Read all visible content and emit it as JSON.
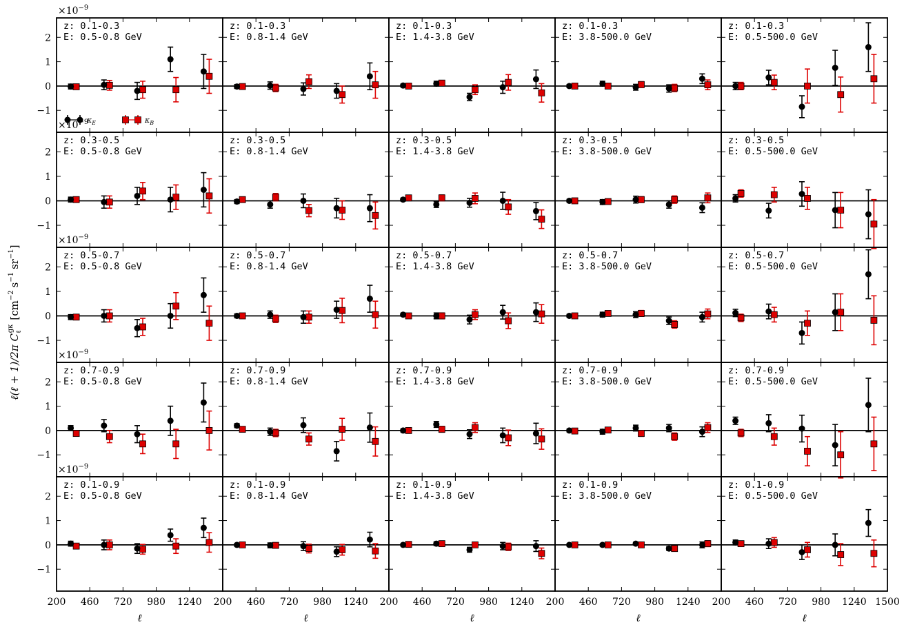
{
  "chart_data": {
    "type": "scatter",
    "grid": false,
    "legend_location": "lower-left of top-left panel",
    "legend": [
      {
        "name": "κ_E",
        "label": "κ",
        "sub": "E",
        "color": "#000000",
        "marker": "circle"
      },
      {
        "name": "κ_B",
        "label": "κ",
        "sub": "B",
        "color": "#dd0000",
        "marker": "square"
      }
    ],
    "xlabel_main": "ℓ",
    "ylabel_main": "ℓ(ℓ + 1)/2π C",
    "ylabel_sup": "gκ",
    "ylabel_sub": "ℓ",
    "ylabel_units": "[cm",
    "ylabel_exp1": "−2",
    "ylabel_mid": "s",
    "ylabel_exp2": "−1",
    "ylabel_mid2": "sr",
    "ylabel_exp3": "−1",
    "ylabel_end": "]",
    "y_exponent_base": "×10",
    "y_exponent_power": "−9",
    "xlim": [
      200,
      1500
    ],
    "ylim": [
      -1.9,
      2.8
    ],
    "xticks": [
      200,
      460,
      720,
      980,
      1240,
      1500
    ],
    "xtick_labels_last_col": [
      "200",
      "460",
      "720",
      "980",
      "1240",
      "1500"
    ],
    "xtick_labels_other": [
      "200",
      "460",
      "720",
      "980",
      "1240"
    ],
    "yticks": [
      -1,
      0,
      1,
      2
    ],
    "ytick_labels": [
      "−1",
      "0",
      "1",
      "2"
    ],
    "z_label": "z:",
    "e_label": "E:",
    "e_unit": "GeV",
    "z_bins": [
      "0.1-0.3",
      "0.3-0.5",
      "0.5-0.7",
      "0.7-0.9",
      "0.1-0.9"
    ],
    "e_bins": [
      "0.5-0.8",
      "0.8-1.4",
      "1.4-3.8",
      "3.8-500.0",
      "0.5-500.0"
    ],
    "x_centers": [
      330,
      590,
      850,
      1110,
      1370
    ],
    "panels": [
      [
        {
          "kE": [
            -0.02,
            0.05,
            -0.2,
            1.1,
            0.6
          ],
          "eE": [
            0.1,
            0.2,
            0.35,
            0.5,
            0.7
          ],
          "kB": [
            -0.03,
            0.03,
            -0.15,
            -0.15,
            0.4
          ],
          "eB": [
            0.1,
            0.2,
            0.35,
            0.5,
            0.7
          ]
        },
        {
          "kE": [
            -0.02,
            0.02,
            -0.12,
            -0.2,
            0.4
          ],
          "eE": [
            0.08,
            0.15,
            0.25,
            0.3,
            0.55
          ],
          "kB": [
            -0.02,
            -0.08,
            0.18,
            -0.35,
            0.05
          ],
          "eB": [
            0.08,
            0.15,
            0.28,
            0.35,
            0.55
          ]
        },
        {
          "kE": [
            0.02,
            0.1,
            -0.45,
            -0.05,
            0.28
          ],
          "eE": [
            0.06,
            0.1,
            0.15,
            0.25,
            0.38
          ],
          "kB": [
            0.0,
            0.12,
            -0.15,
            0.15,
            -0.28
          ],
          "eB": [
            0.06,
            0.1,
            0.2,
            0.32,
            0.38
          ]
        },
        {
          "kE": [
            0.0,
            0.1,
            -0.05,
            -0.1,
            0.3
          ],
          "eE": [
            0.06,
            0.1,
            0.12,
            0.15,
            0.2
          ],
          "kB": [
            0.0,
            0.0,
            0.06,
            -0.08,
            0.05
          ],
          "eB": [
            0.06,
            0.1,
            0.12,
            0.15,
            0.2
          ]
        },
        {
          "kE": [
            0.0,
            0.35,
            -0.85,
            0.75,
            1.6
          ],
          "eE": [
            0.15,
            0.3,
            0.45,
            0.72,
            1.0
          ],
          "kB": [
            0.0,
            0.15,
            0.0,
            -0.35,
            0.3
          ],
          "eB": [
            0.15,
            0.3,
            0.7,
            0.72,
            1.0
          ]
        }
      ],
      [
        {
          "kE": [
            0.05,
            -0.05,
            0.2,
            0.05,
            0.45
          ],
          "eE": [
            0.1,
            0.25,
            0.35,
            0.5,
            0.7
          ],
          "kB": [
            0.05,
            -0.05,
            0.4,
            0.15,
            0.2
          ],
          "eB": [
            0.1,
            0.25,
            0.35,
            0.5,
            0.7
          ]
        },
        {
          "kE": [
            -0.03,
            -0.15,
            0.0,
            -0.3,
            -0.3
          ],
          "eE": [
            0.08,
            0.15,
            0.28,
            0.4,
            0.55
          ],
          "kB": [
            0.05,
            0.15,
            -0.4,
            -0.38,
            -0.6
          ],
          "eB": [
            0.08,
            0.15,
            0.25,
            0.38,
            0.55
          ]
        },
        {
          "kE": [
            0.05,
            -0.15,
            -0.08,
            0.0,
            -0.42
          ],
          "eE": [
            0.06,
            0.12,
            0.18,
            0.35,
            0.35
          ],
          "kB": [
            0.12,
            0.12,
            0.1,
            -0.25,
            -0.75
          ],
          "eB": [
            0.06,
            0.12,
            0.22,
            0.3,
            0.38
          ]
        },
        {
          "kE": [
            0.0,
            -0.05,
            0.05,
            -0.15,
            -0.28
          ],
          "eE": [
            0.06,
            0.1,
            0.14,
            0.15,
            0.2
          ],
          "kB": [
            0.0,
            -0.03,
            0.05,
            0.05,
            0.12
          ],
          "eB": [
            0.06,
            0.1,
            0.12,
            0.15,
            0.2
          ]
        },
        {
          "kE": [
            0.1,
            -0.4,
            0.28,
            -0.38,
            -0.55
          ],
          "eE": [
            0.15,
            0.3,
            0.5,
            0.72,
            1.0
          ],
          "kB": [
            0.3,
            0.25,
            0.1,
            -0.38,
            -0.95
          ],
          "eB": [
            0.15,
            0.3,
            0.45,
            0.72,
            1.0
          ]
        }
      ],
      [
        {
          "kE": [
            -0.05,
            0.0,
            -0.5,
            0.0,
            0.85
          ],
          "eE": [
            0.1,
            0.25,
            0.35,
            0.5,
            0.7
          ],
          "kB": [
            -0.05,
            0.0,
            -0.45,
            0.4,
            -0.3
          ],
          "eB": [
            0.1,
            0.25,
            0.35,
            0.55,
            0.7
          ]
        },
        {
          "kE": [
            0.0,
            0.05,
            -0.05,
            0.25,
            0.7
          ],
          "eE": [
            0.08,
            0.15,
            0.25,
            0.35,
            0.55
          ],
          "kB": [
            0.0,
            -0.12,
            -0.05,
            0.22,
            0.05
          ],
          "eB": [
            0.08,
            0.15,
            0.25,
            0.5,
            0.55
          ]
        },
        {
          "kE": [
            0.05,
            0.0,
            -0.15,
            0.15,
            0.15
          ],
          "eE": [
            0.06,
            0.12,
            0.18,
            0.28,
            0.38
          ],
          "kB": [
            0.0,
            0.0,
            0.05,
            -0.2,
            0.08
          ],
          "eB": [
            0.06,
            0.12,
            0.2,
            0.32,
            0.38
          ]
        },
        {
          "kE": [
            0.0,
            0.05,
            0.05,
            -0.2,
            -0.05
          ],
          "eE": [
            0.06,
            0.1,
            0.12,
            0.15,
            0.2
          ],
          "kB": [
            0.0,
            0.1,
            0.1,
            -0.35,
            0.08
          ],
          "eB": [
            0.06,
            0.1,
            0.12,
            0.15,
            0.2
          ]
        },
        {
          "kE": [
            0.12,
            0.18,
            -0.7,
            0.15,
            1.7
          ],
          "eE": [
            0.15,
            0.3,
            0.45,
            0.75,
            1.0
          ],
          "kB": [
            -0.08,
            0.05,
            -0.3,
            0.15,
            -0.18
          ],
          "eB": [
            0.15,
            0.3,
            0.5,
            0.75,
            1.0
          ]
        }
      ],
      [
        {
          "kE": [
            0.1,
            0.2,
            -0.15,
            0.4,
            1.15
          ],
          "eE": [
            0.1,
            0.25,
            0.35,
            0.6,
            0.8
          ],
          "kB": [
            -0.12,
            -0.25,
            -0.55,
            -0.55,
            0.0
          ],
          "eB": [
            0.1,
            0.25,
            0.4,
            0.6,
            0.8
          ]
        },
        {
          "kE": [
            0.2,
            -0.05,
            0.22,
            -0.85,
            0.12
          ],
          "eE": [
            0.08,
            0.15,
            0.3,
            0.4,
            0.6
          ],
          "kB": [
            0.05,
            -0.1,
            -0.35,
            0.05,
            -0.45
          ],
          "eB": [
            0.08,
            0.15,
            0.25,
            0.45,
            0.6
          ]
        },
        {
          "kE": [
            0.0,
            0.25,
            -0.15,
            -0.2,
            -0.12
          ],
          "eE": [
            0.06,
            0.12,
            0.18,
            0.3,
            0.42
          ],
          "kB": [
            0.0,
            0.05,
            0.12,
            -0.3,
            -0.35
          ],
          "eB": [
            0.06,
            0.12,
            0.2,
            0.32,
            0.42
          ]
        },
        {
          "kE": [
            0.0,
            -0.05,
            0.1,
            0.1,
            -0.05
          ],
          "eE": [
            0.06,
            0.1,
            0.12,
            0.15,
            0.2
          ],
          "kB": [
            -0.02,
            0.02,
            -0.12,
            -0.25,
            0.12
          ],
          "eB": [
            0.06,
            0.1,
            0.12,
            0.15,
            0.2
          ]
        },
        {
          "kE": [
            0.4,
            0.3,
            0.08,
            -0.6,
            1.05
          ],
          "eE": [
            0.15,
            0.35,
            0.55,
            0.85,
            1.1
          ],
          "kB": [
            -0.1,
            -0.25,
            -0.85,
            -1.0,
            -0.55
          ],
          "eB": [
            0.15,
            0.35,
            0.6,
            0.95,
            1.1
          ]
        }
      ],
      [
        {
          "kE": [
            0.05,
            0.0,
            -0.15,
            0.4,
            0.7
          ],
          "eE": [
            0.1,
            0.2,
            0.2,
            0.25,
            0.4
          ],
          "kB": [
            -0.05,
            0.0,
            -0.18,
            -0.05,
            0.1
          ],
          "eB": [
            0.1,
            0.2,
            0.2,
            0.3,
            0.4
          ]
        },
        {
          "kE": [
            0.0,
            -0.02,
            -0.05,
            -0.28,
            0.22
          ],
          "eE": [
            0.06,
            0.1,
            0.18,
            0.2,
            0.3
          ],
          "kB": [
            0.0,
            -0.02,
            -0.15,
            -0.2,
            -0.25
          ],
          "eB": [
            0.06,
            0.1,
            0.18,
            0.22,
            0.3
          ]
        },
        {
          "kE": [
            0.0,
            0.05,
            -0.2,
            -0.05,
            -0.05
          ],
          "eE": [
            0.05,
            0.08,
            0.1,
            0.15,
            0.22
          ],
          "kB": [
            0.02,
            0.05,
            0.0,
            -0.08,
            -0.35
          ],
          "eB": [
            0.05,
            0.08,
            0.1,
            0.15,
            0.22
          ]
        },
        {
          "kE": [
            0.0,
            0.0,
            0.05,
            -0.15,
            0.0
          ],
          "eE": [
            0.05,
            0.06,
            0.06,
            0.08,
            0.12
          ],
          "kB": [
            0.0,
            0.0,
            0.0,
            -0.15,
            0.05
          ],
          "eB": [
            0.05,
            0.06,
            0.06,
            0.08,
            0.12
          ]
        },
        {
          "kE": [
            0.1,
            0.05,
            -0.3,
            0.0,
            0.9
          ],
          "eE": [
            0.1,
            0.2,
            0.3,
            0.45,
            0.55
          ],
          "kB": [
            0.05,
            0.1,
            -0.2,
            -0.4,
            -0.35
          ],
          "eB": [
            0.1,
            0.2,
            0.3,
            0.45,
            0.55
          ]
        }
      ]
    ]
  }
}
